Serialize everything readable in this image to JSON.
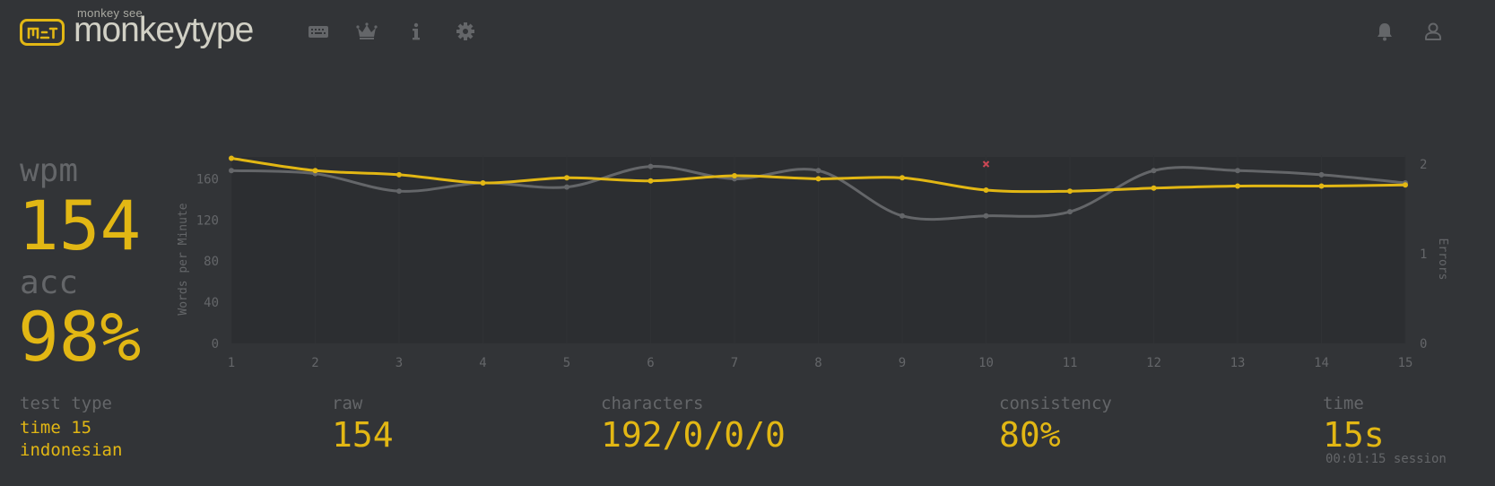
{
  "header": {
    "logo_top": "monkey see",
    "logo_text": "monkeytype",
    "icons": [
      "keyboard-icon",
      "crown-icon",
      "info-icon",
      "gear-icon",
      "bell-icon",
      "user-icon"
    ]
  },
  "results": {
    "wpm_label": "wpm",
    "wpm_value": "154",
    "acc_label": "acc",
    "acc_value": "98%",
    "test_type_label": "test type",
    "test_type_line1": "time 15",
    "test_type_line2": "indonesian",
    "raw_label": "raw",
    "raw_value": "154",
    "characters_label": "characters",
    "characters_value": "192/0/0/0",
    "consistency_label": "consistency",
    "consistency_value": "80%",
    "time_label": "time",
    "time_value": "15s",
    "session_text": "00:01:15 session"
  },
  "colors": {
    "background": "#323437",
    "accent": "#e2b714",
    "sub": "#646669",
    "text": "#d1d0c5",
    "error": "#ca4754",
    "plot_bg": "#2c2e31"
  },
  "chart_data": {
    "type": "line",
    "ylabel": "Words per Minute",
    "y2label": "Errors",
    "x": [
      1,
      2,
      3,
      4,
      5,
      6,
      7,
      8,
      9,
      10,
      11,
      12,
      13,
      14,
      15
    ],
    "ylim": [
      0,
      190
    ],
    "y2lim": [
      0,
      2
    ],
    "yticks": [
      0,
      40,
      80,
      120,
      160
    ],
    "y2ticks": [
      0,
      1,
      2
    ],
    "series": [
      {
        "name": "",
        "color": "#e2b714",
        "values": [
          180,
          168,
          164,
          156,
          161,
          158,
          163,
          160,
          161,
          149,
          148,
          151,
          153,
          153,
          154
        ]
      },
      {
        "name": "",
        "color": "#646669",
        "values": [
          168,
          165,
          148,
          156,
          152,
          172,
          160,
          168,
          124,
          124,
          128,
          168,
          168,
          164,
          156
        ]
      }
    ],
    "errors": [
      {
        "x": 10,
        "count": 2
      }
    ]
  }
}
